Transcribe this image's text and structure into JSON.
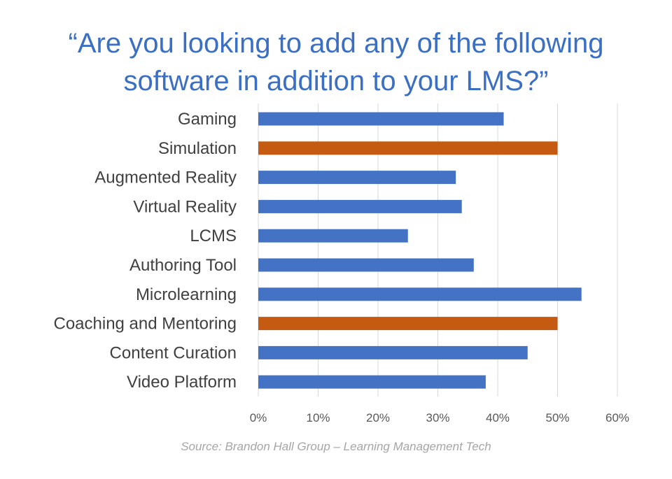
{
  "title_lines": [
    "“Are you looking to add any of the following",
    "software in addition to your LMS?”"
  ],
  "source": "Source: Brandon Hall Group – Learning Management Tech",
  "colors": {
    "title": "#3a6fc4",
    "bar_default": "#4472c4",
    "bar_highlight": "#c55a11",
    "gridline": "#d9d9d9",
    "label": "#404040",
    "tick": "#595959",
    "source": "#a6a6a6"
  },
  "chart_data": {
    "type": "bar",
    "orientation": "horizontal",
    "categories": [
      "Gaming",
      "Simulation",
      "Augmented Reality",
      "Virtual Reality",
      "LCMS",
      "Authoring Tool",
      "Microlearning",
      "Coaching and Mentoring",
      "Content Curation",
      "Video Platform"
    ],
    "values": [
      41,
      50,
      33,
      34,
      25,
      36,
      54,
      50,
      45,
      38
    ],
    "highlighted": [
      "Simulation",
      "Coaching and Mentoring"
    ],
    "xlim": [
      0,
      60
    ],
    "xticks": [
      "0%",
      "10%",
      "20%",
      "30%",
      "40%",
      "50%",
      "60%"
    ],
    "grid": true,
    "legend": "none"
  }
}
